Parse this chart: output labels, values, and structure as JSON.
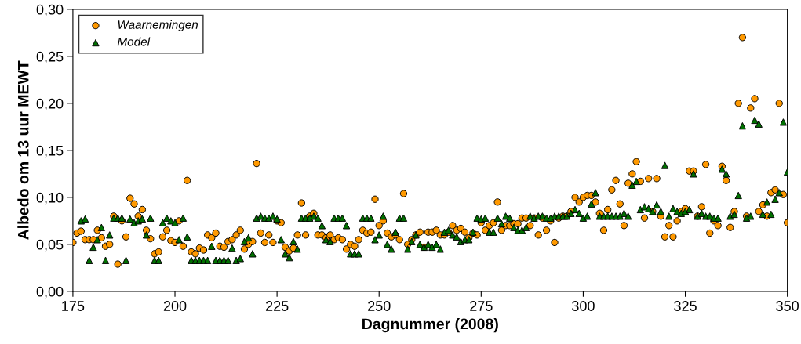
{
  "chart_data": {
    "type": "scatter",
    "xlabel": "Dagnummer (2008)",
    "ylabel": "Albedo om 13 uur MEWT",
    "xlim": [
      175,
      350
    ],
    "xticks": [
      175,
      200,
      225,
      250,
      275,
      300,
      325,
      350
    ],
    "ylim": [
      0,
      0.3
    ],
    "yticks": [
      {
        "value": 0,
        "label": "0,00"
      },
      {
        "value": 0.05,
        "label": "0,05"
      },
      {
        "value": 0.1,
        "label": "0,10"
      },
      {
        "value": 0.15,
        "label": "0,15"
      },
      {
        "value": 0.2,
        "label": "0,20"
      },
      {
        "value": 0.25,
        "label": "0,25"
      },
      {
        "value": 0.3,
        "label": "0,30"
      }
    ],
    "grid": false,
    "legend": "top left",
    "series": [
      {
        "name": "Waarnemingen",
        "color": "#ff9900",
        "marker": "circle",
        "x": [
          175,
          176,
          177,
          178,
          179,
          180,
          181,
          182,
          183,
          184,
          185,
          186,
          187,
          188,
          189,
          190,
          191,
          192,
          193,
          194,
          195,
          196,
          197,
          198,
          199,
          200,
          201,
          202,
          203,
          204,
          205,
          206,
          207,
          208,
          209,
          210,
          211,
          212,
          213,
          214,
          215,
          216,
          217,
          218,
          219,
          220,
          221,
          222,
          223,
          224,
          225,
          226,
          227,
          228,
          229,
          230,
          231,
          232,
          233,
          234,
          235,
          236,
          237,
          238,
          239,
          240,
          241,
          242,
          243,
          244,
          245,
          246,
          247,
          248,
          249,
          250,
          251,
          252,
          253,
          254,
          255,
          256,
          257,
          258,
          259,
          260,
          261,
          262,
          263,
          264,
          265,
          266,
          267,
          268,
          269,
          270,
          271,
          272,
          273,
          274,
          275,
          276,
          277,
          278,
          279,
          280,
          281,
          282,
          283,
          284,
          285,
          286,
          287,
          288,
          289,
          290,
          291,
          292,
          293,
          294,
          295,
          296,
          297,
          298,
          299,
          300,
          301,
          302,
          303,
          304,
          305,
          306,
          307,
          308,
          309,
          310,
          311,
          312,
          313,
          314,
          315,
          316,
          317,
          318,
          319,
          320,
          321,
          322,
          323,
          324,
          325,
          326,
          327,
          328,
          329,
          330,
          331,
          332,
          333,
          334,
          335,
          336,
          337,
          338,
          339,
          340,
          341,
          342,
          343,
          344,
          345,
          346,
          347,
          348,
          349,
          350
        ],
        "values": [
          0.052,
          0.062,
          0.064,
          0.055,
          0.055,
          0.055,
          0.065,
          0.057,
          0.048,
          0.05,
          0.08,
          0.029,
          0.075,
          0.058,
          0.099,
          0.093,
          0.08,
          0.087,
          0.065,
          0.056,
          0.04,
          0.042,
          0.058,
          0.065,
          0.054,
          0.052,
          0.075,
          0.048,
          0.118,
          0.042,
          0.04,
          0.046,
          0.044,
          0.06,
          0.057,
          0.062,
          0.048,
          0.047,
          0.053,
          0.055,
          0.06,
          0.065,
          0.045,
          0.05,
          0.053,
          0.136,
          0.062,
          0.052,
          0.06,
          0.052,
          0.075,
          0.073,
          0.047,
          0.043,
          0.046,
          0.06,
          0.094,
          0.06,
          0.08,
          0.083,
          0.06,
          0.06,
          0.057,
          0.06,
          0.055,
          0.057,
          0.055,
          0.045,
          0.05,
          0.048,
          0.055,
          0.065,
          0.062,
          0.063,
          0.098,
          0.07,
          0.075,
          0.062,
          0.058,
          0.06,
          0.055,
          0.104,
          0.05,
          0.055,
          0.06,
          0.063,
          0.047,
          0.063,
          0.063,
          0.065,
          0.06,
          0.06,
          0.063,
          0.07,
          0.065,
          0.067,
          0.063,
          0.057,
          0.062,
          0.06,
          0.073,
          0.065,
          0.07,
          0.073,
          0.095,
          0.065,
          0.07,
          0.07,
          0.072,
          0.072,
          0.078,
          0.078,
          0.07,
          0.078,
          0.06,
          0.078,
          0.065,
          0.075,
          0.052,
          0.078,
          0.08,
          0.08,
          0.085,
          0.1,
          0.095,
          0.1,
          0.102,
          0.102,
          0.095,
          0.083,
          0.065,
          0.087,
          0.108,
          0.118,
          0.093,
          0.07,
          0.115,
          0.125,
          0.138,
          0.117,
          0.078,
          0.12,
          0.085,
          0.12,
          0.08,
          0.058,
          0.07,
          0.058,
          0.075,
          0.085,
          0.088,
          0.128,
          0.128,
          0.08,
          0.09,
          0.135,
          0.062,
          0.075,
          0.07,
          0.133,
          0.118,
          0.068,
          0.085,
          0.2,
          0.27,
          0.08,
          0.195,
          0.205,
          0.085,
          0.092,
          0.08,
          0.105,
          0.108,
          0.2,
          0.103,
          0.073
        ]
      },
      {
        "name": "Model",
        "color": "#007000",
        "marker": "triangle",
        "x": [
          177,
          178,
          179,
          180,
          181,
          182,
          183,
          184,
          185,
          186,
          187,
          188,
          189,
          190,
          191,
          192,
          193,
          194,
          195,
          196,
          197,
          198,
          199,
          200,
          201,
          202,
          203,
          204,
          205,
          206,
          207,
          208,
          209,
          210,
          211,
          212,
          213,
          214,
          215,
          216,
          217,
          218,
          219,
          220,
          221,
          222,
          223,
          224,
          225,
          226,
          227,
          228,
          229,
          230,
          231,
          232,
          233,
          234,
          235,
          236,
          237,
          238,
          239,
          240,
          241,
          242,
          243,
          244,
          245,
          246,
          247,
          248,
          249,
          250,
          251,
          252,
          253,
          254,
          255,
          256,
          257,
          258,
          259,
          260,
          261,
          262,
          263,
          264,
          265,
          266,
          267,
          268,
          269,
          270,
          271,
          272,
          273,
          274,
          275,
          276,
          277,
          278,
          279,
          280,
          281,
          282,
          283,
          284,
          285,
          286,
          287,
          288,
          289,
          290,
          291,
          292,
          293,
          294,
          295,
          296,
          297,
          298,
          299,
          300,
          301,
          302,
          303,
          304,
          305,
          306,
          307,
          308,
          309,
          310,
          311,
          312,
          313,
          314,
          315,
          316,
          317,
          318,
          319,
          320,
          321,
          322,
          323,
          324,
          325,
          326,
          327,
          328,
          329,
          330,
          331,
          332,
          333,
          334,
          335,
          336,
          337,
          338,
          339,
          340,
          341,
          342,
          343,
          344,
          345,
          346,
          347,
          348,
          349,
          350
        ],
        "values": [
          0.075,
          0.077,
          0.033,
          0.047,
          0.055,
          0.068,
          0.033,
          0.06,
          0.078,
          0.078,
          0.078,
          0.033,
          0.077,
          0.073,
          0.075,
          0.077,
          0.06,
          0.078,
          0.033,
          0.033,
          0.073,
          0.078,
          0.075,
          0.073,
          0.055,
          0.078,
          0.058,
          0.033,
          0.033,
          0.033,
          0.033,
          0.033,
          0.048,
          0.033,
          0.033,
          0.033,
          0.033,
          0.046,
          0.033,
          0.035,
          0.053,
          0.057,
          0.04,
          0.078,
          0.08,
          0.078,
          0.078,
          0.08,
          0.077,
          0.055,
          0.04,
          0.036,
          0.053,
          0.045,
          0.078,
          0.078,
          0.078,
          0.08,
          0.078,
          0.07,
          0.055,
          0.053,
          0.078,
          0.078,
          0.078,
          0.07,
          0.04,
          0.04,
          0.04,
          0.078,
          0.078,
          0.078,
          0.055,
          0.06,
          0.08,
          0.05,
          0.045,
          0.063,
          0.078,
          0.078,
          0.045,
          0.053,
          0.06,
          0.05,
          0.047,
          0.05,
          0.047,
          0.05,
          0.045,
          0.063,
          0.065,
          0.06,
          0.058,
          0.053,
          0.055,
          0.055,
          0.063,
          0.078,
          0.077,
          0.078,
          0.063,
          0.063,
          0.078,
          0.072,
          0.08,
          0.078,
          0.068,
          0.065,
          0.065,
          0.068,
          0.08,
          0.078,
          0.08,
          0.08,
          0.078,
          0.078,
          0.08,
          0.08,
          0.08,
          0.08,
          0.083,
          0.087,
          0.083,
          0.078,
          0.08,
          0.093,
          0.105,
          0.08,
          0.08,
          0.08,
          0.08,
          0.08,
          0.08,
          0.083,
          0.08,
          0.113,
          0.117,
          0.087,
          0.09,
          0.088,
          0.085,
          0.092,
          0.085,
          0.134,
          0.08,
          0.088,
          0.085,
          0.083,
          0.085,
          0.087,
          0.125,
          0.08,
          0.083,
          0.08,
          0.08,
          0.078,
          0.078,
          0.13,
          0.125,
          0.08,
          0.082,
          0.102,
          0.176,
          0.078,
          0.08,
          0.182,
          0.178,
          0.082,
          0.095,
          0.082,
          0.098,
          0.105,
          0.18,
          0.127
        ]
      }
    ]
  }
}
